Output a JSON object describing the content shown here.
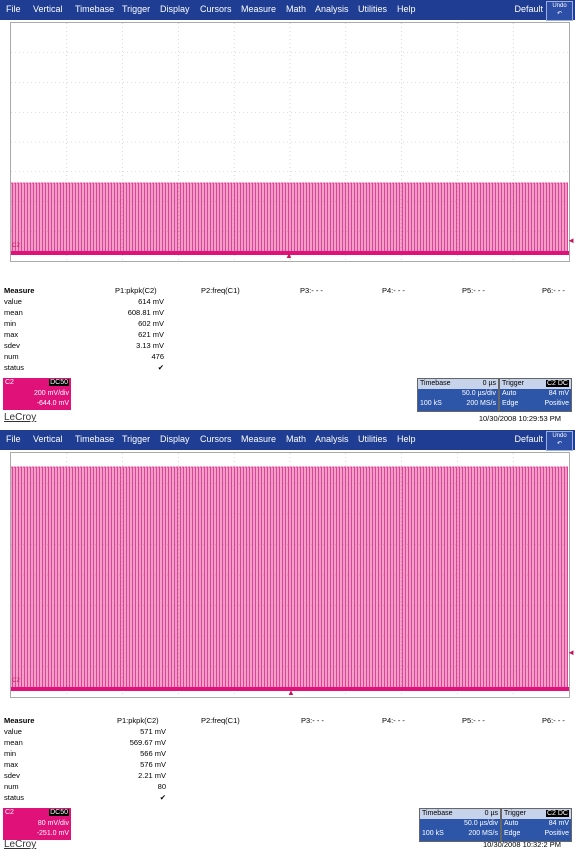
{
  "menu": {
    "items": [
      "File",
      "Vertical",
      "Timebase",
      "Trigger",
      "Display",
      "Cursors",
      "Measure",
      "Math",
      "Analysis",
      "Utilities",
      "Help"
    ],
    "default_label": "Default",
    "undo_label": "Undo"
  },
  "screens": [
    {
      "channel_tag": "C2",
      "measure": {
        "title": "Measure",
        "params": [
          "P1:pkpk(C2)",
          "P2:freq(C1)",
          "P3:- - -",
          "P4:- - -",
          "P5:- - -",
          "P6:- - -"
        ],
        "rows": [
          {
            "label": "value",
            "value": "614 mV"
          },
          {
            "label": "mean",
            "value": "608.81 mV"
          },
          {
            "label": "min",
            "value": "602 mV"
          },
          {
            "label": "max",
            "value": "621 mV"
          },
          {
            "label": "sdev",
            "value": "3.13 mV"
          },
          {
            "label": "num",
            "value": "476"
          },
          {
            "label": "status",
            "value": "✔"
          }
        ]
      },
      "channel_box": {
        "name": "C2",
        "coupling": "DC50",
        "vdiv": "200 mV/div",
        "offset": "-644.0 mV"
      },
      "timebase": {
        "title": "Timebase",
        "delay": "0 µs",
        "tdiv": "50.0 µs/div",
        "samples": "100 kS",
        "rate": "200 MS/s"
      },
      "trigger": {
        "title": "Trigger",
        "src": "C2",
        "coupling": "DC",
        "mode": "Auto",
        "level": "84 mV",
        "type": "Edge",
        "slope": "Positive"
      },
      "logo": "LeCroy",
      "datetime": "10/30/2008 10:29:53 PM"
    },
    {
      "channel_tag": "C2",
      "measure": {
        "title": "Measure",
        "params": [
          "P1:pkpk(C2)",
          "P2:freq(C1)",
          "P3:- - -",
          "P4:- - -",
          "P5:- - -",
          "P6:- - -"
        ],
        "rows": [
          {
            "label": "value",
            "value": "571 mV"
          },
          {
            "label": "mean",
            "value": "569.67 mV"
          },
          {
            "label": "min",
            "value": "566 mV"
          },
          {
            "label": "max",
            "value": "576 mV"
          },
          {
            "label": "sdev",
            "value": "2.21 mV"
          },
          {
            "label": "num",
            "value": "80"
          },
          {
            "label": "status",
            "value": "✔"
          }
        ]
      },
      "channel_box": {
        "name": "C2",
        "coupling": "DC50",
        "vdiv": "80 mV/div",
        "offset": "-251.0 mV"
      },
      "timebase": {
        "title": "Timebase",
        "delay": "0 µs",
        "tdiv": "50.0 µs/div",
        "samples": "100 kS",
        "rate": "200 MS/s"
      },
      "trigger": {
        "title": "Trigger",
        "src": "C2",
        "coupling": "DC",
        "mode": "Auto",
        "level": "84 mV",
        "type": "Edge",
        "slope": "Positive"
      },
      "logo": "LeCroy",
      "datetime": "10/30/2008 10:32:2 PM"
    }
  ],
  "colors": {
    "menu_bg": "#1f3e93",
    "trace": "#e0127a",
    "grid": "#aaaaaa",
    "panel_blue": "#2d56a8"
  }
}
